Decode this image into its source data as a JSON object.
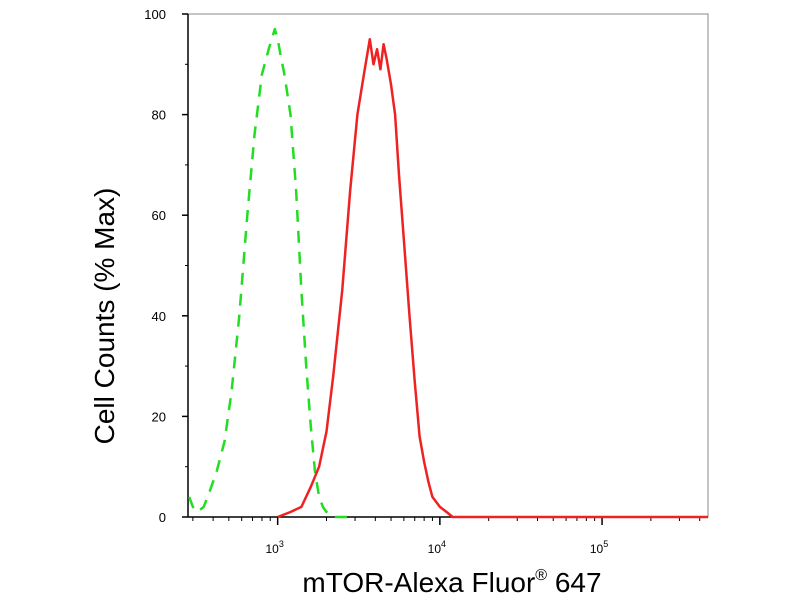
{
  "chart_data": {
    "type": "line",
    "title": "",
    "xlabel": "mTOR-Alexa Fluor",
    "xlabel_superscript": "®",
    "xlabel_suffix": " 647",
    "ylabel": "Cell Counts (% Max)",
    "x_scale": "log",
    "xlim": [
      280,
      450000
    ],
    "ylim": [
      0,
      100
    ],
    "y_ticks": [
      0,
      20,
      40,
      60,
      80,
      100
    ],
    "x_ticks": [
      {
        "value": 1000,
        "base": "10",
        "exp": "3"
      },
      {
        "value": 10000,
        "base": "10",
        "exp": "4"
      },
      {
        "value": 100000,
        "base": "10",
        "exp": "5"
      }
    ],
    "grid": false,
    "legend": "none",
    "series": [
      {
        "color": "#22dd22",
        "style": "dashed",
        "x": [
          285,
          300,
          320,
          350,
          380,
          420,
          470,
          520,
          580,
          650,
          720,
          800,
          880,
          960,
          1000,
          1040,
          1100,
          1200,
          1300,
          1400,
          1500,
          1600,
          1700,
          1800,
          1900,
          2000,
          2200,
          2500,
          3000
        ],
        "y": [
          4,
          2,
          1,
          2,
          5,
          9,
          15,
          25,
          40,
          60,
          76,
          88,
          93,
          97,
          95,
          92,
          88,
          80,
          65,
          45,
          30,
          18,
          9,
          4,
          2,
          1,
          0,
          0,
          0
        ]
      },
      {
        "color": "#ee2222",
        "style": "solid",
        "x": [
          1000,
          1200,
          1400,
          1600,
          1800,
          2000,
          2200,
          2500,
          2800,
          3100,
          3400,
          3700,
          3900,
          4100,
          4300,
          4500,
          4700,
          5000,
          5300,
          5600,
          6000,
          6500,
          7000,
          7500,
          8000,
          8500,
          9000,
          10000,
          11000,
          12000,
          13500,
          15000,
          20000,
          50000,
          100000,
          450000
        ],
        "y": [
          0,
          1,
          2,
          6,
          10,
          17,
          28,
          45,
          65,
          80,
          88,
          95,
          90,
          93,
          89,
          94,
          91,
          86,
          80,
          68,
          55,
          40,
          27,
          16,
          11,
          7,
          4,
          2,
          1,
          0,
          0,
          0,
          0,
          0,
          0,
          0
        ]
      }
    ]
  }
}
